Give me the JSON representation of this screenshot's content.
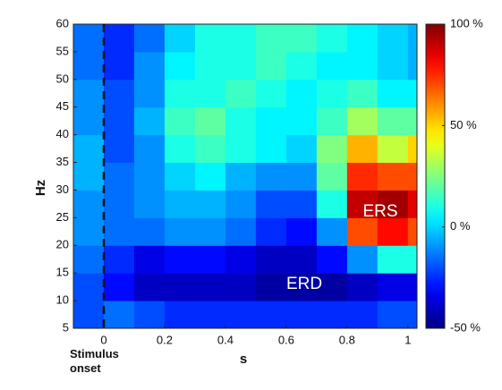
{
  "chart_data": {
    "type": "heatmap",
    "colormap": "jet",
    "xlabel": "s",
    "ylabel": "Hz",
    "x": [
      -0.1,
      0,
      0.1,
      0.2,
      0.3,
      0.4,
      0.5,
      0.6,
      0.7,
      0.8,
      0.9,
      1.0,
      1.03
    ],
    "y": [
      5,
      10,
      15,
      20,
      25,
      30,
      35,
      40,
      45,
      50,
      55,
      60
    ],
    "values": [
      [
        -20,
        -15,
        -20,
        -25,
        -25,
        -25,
        -25,
        -25,
        -25,
        -25,
        -20,
        -20
      ],
      [
        -20,
        -30,
        -40,
        -40,
        -40,
        -40,
        -45,
        -45,
        -45,
        -40,
        -35,
        -35
      ],
      [
        -15,
        -25,
        -35,
        -30,
        -30,
        -35,
        -40,
        -40,
        -30,
        -10,
        10,
        10
      ],
      [
        -10,
        -15,
        -15,
        -10,
        -10,
        -15,
        -25,
        -30,
        -10,
        70,
        80,
        70
      ],
      [
        -10,
        -15,
        -10,
        -5,
        -5,
        -10,
        -20,
        -20,
        10,
        90,
        95,
        85
      ],
      [
        -5,
        -15,
        -10,
        0,
        5,
        -5,
        -10,
        -10,
        20,
        75,
        70,
        70
      ],
      [
        -5,
        -20,
        -10,
        10,
        15,
        10,
        5,
        0,
        25,
        55,
        35,
        50
      ],
      [
        -10,
        -20,
        -5,
        15,
        20,
        10,
        5,
        5,
        15,
        30,
        20,
        20
      ],
      [
        -10,
        -20,
        -10,
        10,
        10,
        15,
        10,
        5,
        10,
        15,
        5,
        5
      ],
      [
        -15,
        -25,
        -10,
        5,
        10,
        10,
        15,
        10,
        5,
        5,
        0,
        -5
      ],
      [
        -15,
        -25,
        -15,
        0,
        10,
        10,
        15,
        15,
        10,
        5,
        0,
        -5
      ]
    ],
    "xlim": [
      -0.1,
      1.03
    ],
    "xticks": [
      0,
      0.2,
      0.4,
      0.6,
      0.8,
      1
    ],
    "ylim": [
      5,
      60
    ],
    "yticks": [
      5,
      10,
      15,
      20,
      25,
      30,
      35,
      40,
      45,
      50,
      55,
      60
    ],
    "clim": [
      -50,
      100
    ],
    "cticks": [
      {
        "value": 100,
        "label": "100 %"
      },
      {
        "value": 50,
        "label": "50 %"
      },
      {
        "value": 0,
        "label": "0 %"
      },
      {
        "value": -50,
        "label": "-50 %"
      }
    ],
    "vline": 0,
    "vline_label": "Stimulus onset",
    "annotations": [
      "ERS",
      "ERD"
    ]
  }
}
